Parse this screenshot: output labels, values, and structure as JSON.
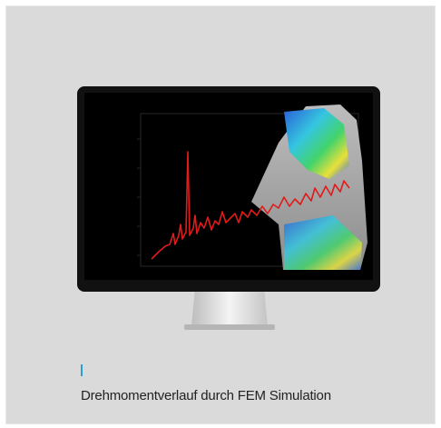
{
  "caption": "Drehmomentverlauf durch FEM Simulation"
}
